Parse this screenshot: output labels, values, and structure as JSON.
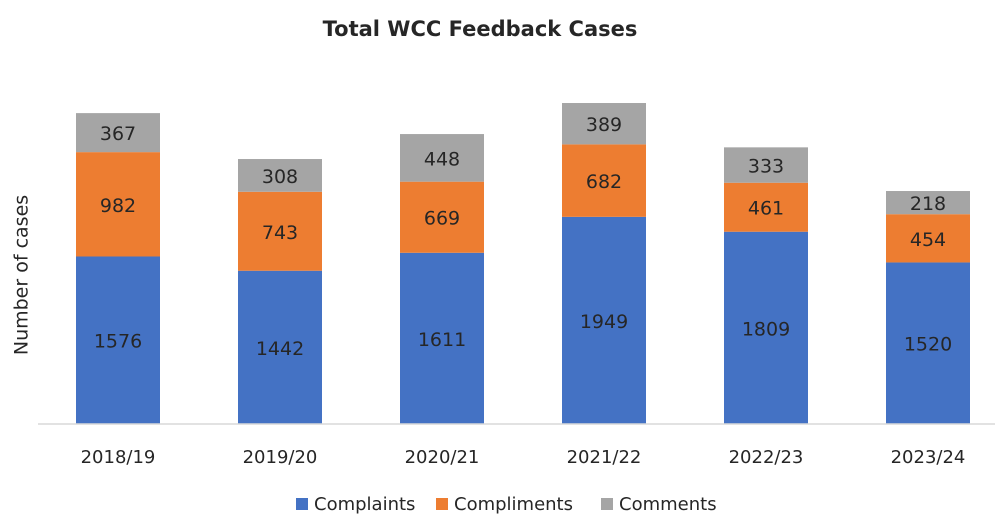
{
  "chart_data": {
    "type": "stacked_bar",
    "title": "Total WCC Feedback Cases",
    "y_label": "Number of cases",
    "categories": [
      "2018/19",
      "2019/20",
      "2020/21",
      "2021/22",
      "2022/23",
      "2023/24"
    ],
    "series": [
      {
        "name": "Complaints",
        "color": "#4472c4",
        "values": [
          1576,
          1442,
          1611,
          1949,
          1809,
          1520
        ]
      },
      {
        "name": "Compliments",
        "color": "#ed7d31",
        "values": [
          982,
          743,
          669,
          682,
          461,
          454
        ]
      },
      {
        "name": "Comments",
        "color": "#a5a5a5",
        "values": [
          367,
          308,
          448,
          389,
          333,
          218
        ]
      }
    ],
    "ylim": [
      0,
      3500
    ],
    "legend": "bottom"
  }
}
